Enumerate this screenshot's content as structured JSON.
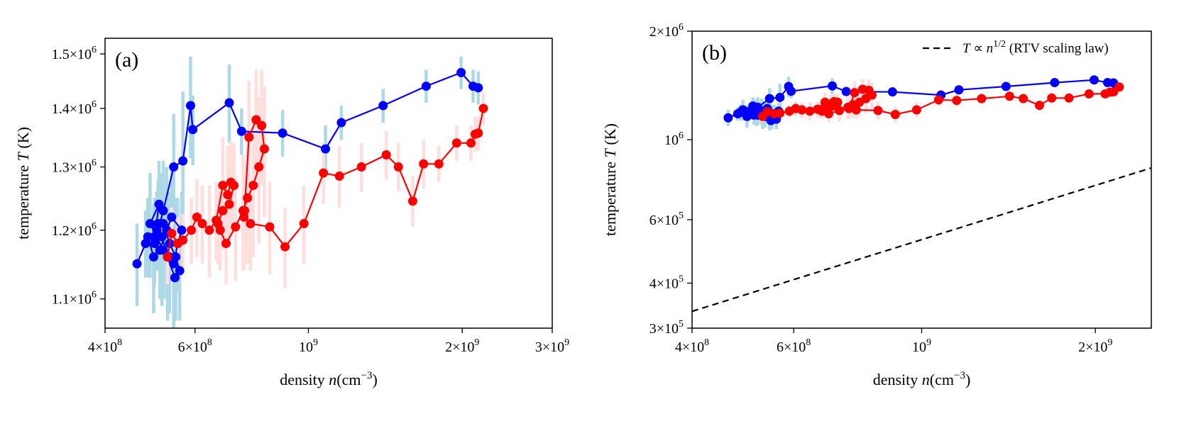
{
  "chart_data": [
    {
      "type": "scatter",
      "panel_label": "(a)",
      "xlabel_text": "density ",
      "xlabel_var": "n",
      "xlabel_unit": "(cm",
      "xlabel_unit_exp": "−3",
      "xlabel_unit_close": ")",
      "ylabel_text": "temperature ",
      "ylabel_var": "T",
      "ylabel_unit": "(K)",
      "xscale": "log",
      "yscale": "log",
      "xlim": [
        400000000,
        3000000000
      ],
      "ylim": [
        1060000,
        1530000
      ],
      "xticks": [
        {
          "value": 400000000,
          "mant": "4×10",
          "exp": "8"
        },
        {
          "value": 600000000,
          "mant": "6×10",
          "exp": "8"
        },
        {
          "value": 1000000000,
          "mant": "10",
          "exp": "9"
        },
        {
          "value": 2000000000,
          "mant": "2×10",
          "exp": "9"
        },
        {
          "value": 3000000000,
          "mant": "3×10",
          "exp": "9"
        }
      ],
      "yticks": [
        {
          "value": 1100000,
          "mant": "1.1×10",
          "exp": "6"
        },
        {
          "value": 1200000,
          "mant": "1.2×10",
          "exp": "6"
        },
        {
          "value": 1300000,
          "mant": "1.3×10",
          "exp": "6"
        },
        {
          "value": 1400000,
          "mant": "1.4×10",
          "exp": "6"
        },
        {
          "value": 1500000,
          "mant": "1.5×10",
          "exp": "6"
        }
      ],
      "grid": false,
      "series": [
        {
          "color": "#0000ff",
          "errcolor": "#add8e6",
          "x": [
            462000000,
            480000000,
            500000000,
            510000000,
            490000000,
            520000000,
            535000000,
            545000000,
            555000000,
            565000000,
            540000000,
            528000000,
            512000000,
            498000000,
            485000000,
            505000000,
            520000000,
            535000000,
            550000000,
            560000000,
            548000000,
            530000000,
            517000000,
            508000000,
            500000000,
            520000000,
            545000000,
            568000000,
            588000000,
            594000000,
            700000000,
            740000000,
            890000000,
            1080000000,
            1160000000,
            1400000000,
            1700000000,
            1990000000,
            2100000000,
            2150000000
          ],
          "y": [
            1150000,
            1180000,
            1190000,
            1240000,
            1210000,
            1170000,
            1160000,
            1150000,
            1180000,
            1200000,
            1220000,
            1200000,
            1170000,
            1160000,
            1190000,
            1200000,
            1210000,
            1180000,
            1160000,
            1140000,
            1130000,
            1160000,
            1190000,
            1210000,
            1180000,
            1230000,
            1300000,
            1310000,
            1405000,
            1363000,
            1410000,
            1360000,
            1357000,
            1330000,
            1375000,
            1405000,
            1440000,
            1465000,
            1440000,
            1437000
          ],
          "err": [
            60000,
            50000,
            60000,
            70000,
            80000,
            70000,
            80000,
            90000,
            70000,
            60000,
            80000,
            100000,
            70000,
            80000,
            60000,
            60000,
            70000,
            80000,
            90000,
            70000,
            60000,
            90000,
            100000,
            70000,
            60000,
            80000,
            90000,
            120000,
            90000,
            60000,
            70000,
            40000,
            40000,
            40000,
            30000,
            30000,
            30000,
            30000,
            30000,
            30000
          ]
        },
        {
          "color": "#ff0000",
          "errcolor": "#ffdede",
          "x": [
            530000000,
            540000000,
            555000000,
            568000000,
            590000000,
            605000000,
            620000000,
            640000000,
            660000000,
            680000000,
            695000000,
            705000000,
            715000000,
            700000000,
            680000000,
            665000000,
            672000000,
            690000000,
            720000000,
            745000000,
            760000000,
            780000000,
            800000000,
            820000000,
            810000000,
            790000000,
            765000000,
            750000000,
            748000000,
            770000000,
            840000000,
            900000000,
            980000000,
            1070000000,
            1150000000,
            1270000000,
            1420000000,
            1500000000,
            1600000000,
            1680000000,
            1800000000,
            1950000000,
            2080000000,
            2120000000,
            2150000000,
            2200000000
          ],
          "y": [
            1160000,
            1195000,
            1180000,
            1185000,
            1200000,
            1220000,
            1210000,
            1200000,
            1215000,
            1270000,
            1255000,
            1275000,
            1270000,
            1240000,
            1230000,
            1210000,
            1200000,
            1180000,
            1205000,
            1230000,
            1250000,
            1270000,
            1300000,
            1330000,
            1370000,
            1380000,
            1350000,
            1230000,
            1220000,
            1210000,
            1205000,
            1175000,
            1210000,
            1290000,
            1285000,
            1300000,
            1320000,
            1300000,
            1245000,
            1305000,
            1305000,
            1340000,
            1340000,
            1355000,
            1357000,
            1400000
          ],
          "err": [
            40000,
            40000,
            40000,
            40000,
            50000,
            60000,
            60000,
            70000,
            60000,
            80000,
            80000,
            70000,
            70000,
            60000,
            60000,
            60000,
            60000,
            60000,
            80000,
            90000,
            100000,
            110000,
            120000,
            110000,
            100000,
            90000,
            100000,
            80000,
            80000,
            70000,
            70000,
            60000,
            60000,
            50000,
            50000,
            40000,
            40000,
            40000,
            40000,
            40000,
            30000,
            30000,
            30000,
            30000,
            30000,
            30000
          ]
        }
      ]
    },
    {
      "type": "scatter",
      "panel_label": "(b)",
      "xlabel_text": "density ",
      "xlabel_var": "n",
      "xlabel_unit": "(cm",
      "xlabel_unit_exp": "−3",
      "xlabel_unit_close": ")",
      "ylabel_text": "temperature ",
      "ylabel_var": "T",
      "ylabel_unit": "(K)",
      "xscale": "log",
      "yscale": "log",
      "xlim": [
        400000000,
        2500000000
      ],
      "ylim": [
        300000,
        2000000
      ],
      "xticks": [
        {
          "value": 400000000,
          "mant": "4×10",
          "exp": "8"
        },
        {
          "value": 600000000,
          "mant": "6×10",
          "exp": "8"
        },
        {
          "value": 1000000000,
          "mant": "10",
          "exp": "9"
        },
        {
          "value": 2000000000,
          "mant": "2×10",
          "exp": "9"
        }
      ],
      "yticks": [
        {
          "value": 300000,
          "mant": "3×10",
          "exp": "5"
        },
        {
          "value": 400000,
          "mant": "4×10",
          "exp": "5"
        },
        {
          "value": 600000,
          "mant": "6×10",
          "exp": "5"
        },
        {
          "value": 1000000,
          "mant": "10",
          "exp": "6"
        },
        {
          "value": 2000000,
          "mant": "2×10",
          "exp": "6"
        }
      ],
      "grid": false,
      "legend": {
        "position": "top-right",
        "label_var": "T",
        "label_mid": "∝",
        "label_var2": "n",
        "label_exp": "1/2",
        "label_rest": " (RTV scaling law)"
      },
      "reference_line": {
        "x": [
          400000000,
          2500000000
        ],
        "y": [
          334000,
          835000
        ]
      },
      "series": [
        {
          "color": "#0000ff",
          "errcolor": "#add8e6",
          "x": [
            462000000,
            480000000,
            500000000,
            510000000,
            490000000,
            520000000,
            535000000,
            545000000,
            555000000,
            565000000,
            540000000,
            528000000,
            512000000,
            498000000,
            485000000,
            505000000,
            520000000,
            535000000,
            550000000,
            560000000,
            548000000,
            530000000,
            517000000,
            508000000,
            500000000,
            520000000,
            545000000,
            568000000,
            588000000,
            594000000,
            700000000,
            740000000,
            890000000,
            1080000000,
            1160000000,
            1400000000,
            1700000000,
            1990000000,
            2100000000,
            2150000000
          ],
          "y": [
            1150000,
            1180000,
            1190000,
            1240000,
            1210000,
            1170000,
            1160000,
            1150000,
            1180000,
            1200000,
            1220000,
            1200000,
            1170000,
            1160000,
            1190000,
            1200000,
            1210000,
            1180000,
            1160000,
            1140000,
            1130000,
            1160000,
            1190000,
            1210000,
            1180000,
            1230000,
            1300000,
            1310000,
            1405000,
            1363000,
            1410000,
            1360000,
            1357000,
            1330000,
            1375000,
            1405000,
            1440000,
            1465000,
            1440000,
            1437000
          ],
          "err": [
            60000,
            50000,
            60000,
            70000,
            80000,
            70000,
            80000,
            90000,
            70000,
            60000,
            80000,
            100000,
            70000,
            80000,
            60000,
            60000,
            70000,
            80000,
            90000,
            70000,
            60000,
            90000,
            100000,
            70000,
            60000,
            80000,
            90000,
            120000,
            90000,
            60000,
            70000,
            40000,
            40000,
            40000,
            30000,
            30000,
            30000,
            30000,
            30000,
            30000
          ]
        },
        {
          "color": "#ff0000",
          "errcolor": "#ffdede",
          "x": [
            530000000,
            540000000,
            555000000,
            568000000,
            590000000,
            605000000,
            620000000,
            640000000,
            660000000,
            680000000,
            695000000,
            705000000,
            715000000,
            700000000,
            680000000,
            665000000,
            672000000,
            690000000,
            720000000,
            745000000,
            760000000,
            780000000,
            800000000,
            820000000,
            810000000,
            790000000,
            765000000,
            750000000,
            748000000,
            770000000,
            840000000,
            900000000,
            980000000,
            1070000000,
            1150000000,
            1270000000,
            1420000000,
            1500000000,
            1600000000,
            1680000000,
            1800000000,
            1950000000,
            2080000000,
            2120000000,
            2150000000,
            2200000000
          ],
          "y": [
            1160000,
            1195000,
            1180000,
            1185000,
            1200000,
            1220000,
            1210000,
            1200000,
            1215000,
            1270000,
            1255000,
            1275000,
            1270000,
            1240000,
            1230000,
            1210000,
            1200000,
            1180000,
            1205000,
            1230000,
            1250000,
            1270000,
            1300000,
            1330000,
            1370000,
            1380000,
            1350000,
            1230000,
            1220000,
            1210000,
            1205000,
            1175000,
            1210000,
            1290000,
            1285000,
            1300000,
            1320000,
            1300000,
            1245000,
            1305000,
            1305000,
            1340000,
            1340000,
            1355000,
            1357000,
            1400000
          ],
          "err": [
            40000,
            40000,
            40000,
            40000,
            50000,
            60000,
            60000,
            70000,
            60000,
            80000,
            80000,
            70000,
            70000,
            60000,
            60000,
            60000,
            60000,
            60000,
            80000,
            90000,
            100000,
            110000,
            120000,
            110000,
            100000,
            90000,
            100000,
            80000,
            80000,
            70000,
            70000,
            60000,
            60000,
            50000,
            50000,
            40000,
            40000,
            40000,
            40000,
            40000,
            30000,
            30000,
            30000,
            30000,
            30000,
            30000
          ]
        }
      ]
    }
  ]
}
